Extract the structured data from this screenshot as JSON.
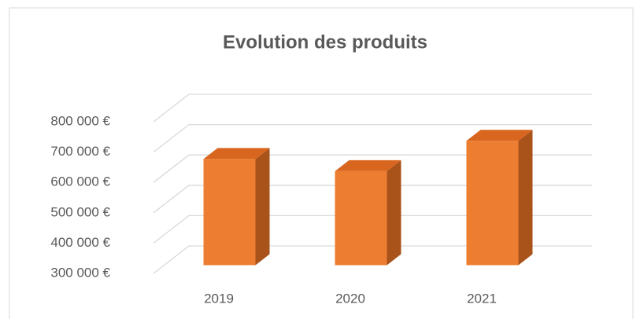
{
  "chart_data": {
    "type": "bar3d",
    "title": "Evolution des produits",
    "categories": [
      "2019",
      "2020",
      "2021"
    ],
    "values": [
      650000,
      610000,
      710000
    ],
    "color": "#ed7d31",
    "ylim": [
      300000,
      800000
    ],
    "yticks": [
      {
        "value": 300000,
        "label": "300 000 €"
      },
      {
        "value": 400000,
        "label": "400 000 €"
      },
      {
        "value": 500000,
        "label": "500 000 €"
      },
      {
        "value": 600000,
        "label": "600 000 €"
      },
      {
        "value": 700000,
        "label": "700 000 €"
      },
      {
        "value": 800000,
        "label": "800 000 €"
      }
    ],
    "grid": true
  }
}
